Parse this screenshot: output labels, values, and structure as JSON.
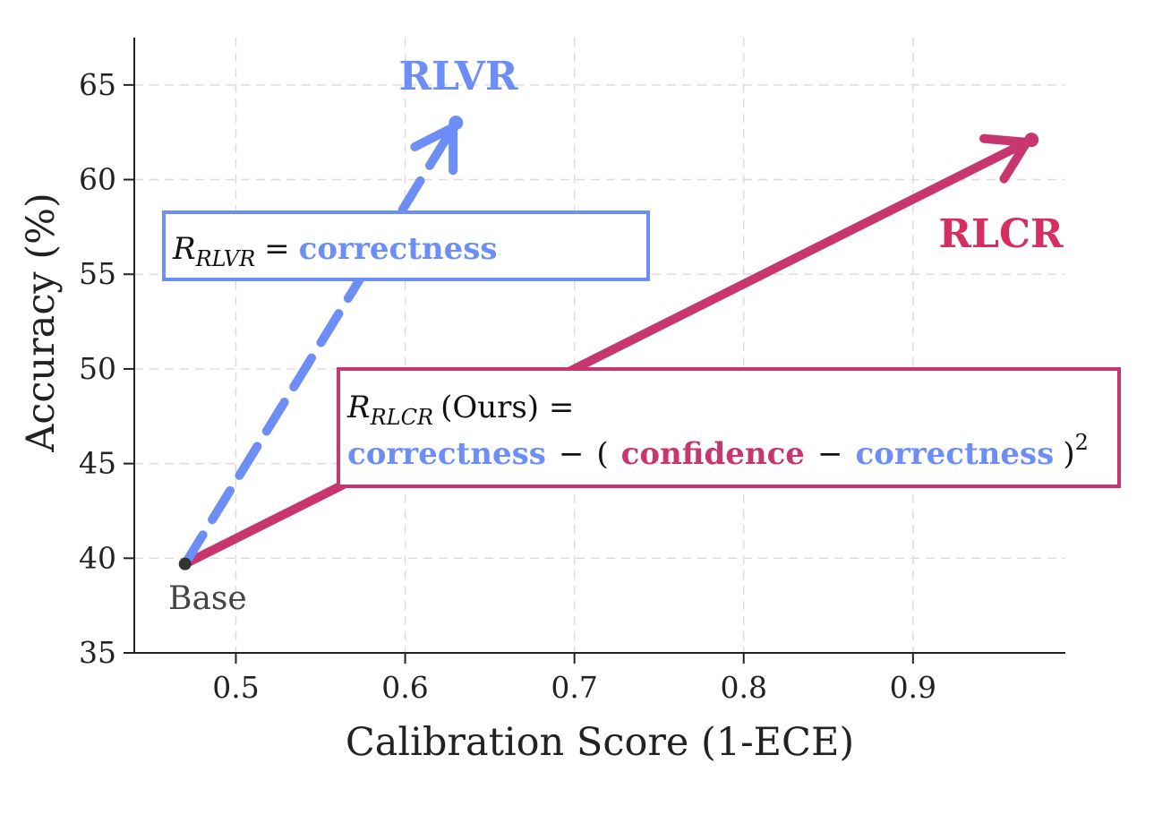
{
  "chart_data": {
    "type": "line",
    "xlabel": "Calibration Score (1-ECE)",
    "ylabel": "Accuracy (%)",
    "xlim": [
      0.44,
      0.99
    ],
    "ylim": [
      35,
      67.5
    ],
    "x_ticks": [
      "0.5",
      "0.6",
      "0.7",
      "0.8",
      "0.9"
    ],
    "y_ticks": [
      "35",
      "40",
      "45",
      "50",
      "55",
      "60",
      "65"
    ],
    "grid": true,
    "base": {
      "label": "Base",
      "x": 0.47,
      "y": 39.7
    },
    "series": [
      {
        "name": "RLVR",
        "color": "#6E8EF7",
        "style": "dashed",
        "x": [
          0.47,
          0.63
        ],
        "y": [
          39.7,
          63.0
        ]
      },
      {
        "name": "RLCR",
        "color": "#C7366F",
        "style": "solid",
        "x": [
          0.47,
          0.97
        ],
        "y": [
          39.7,
          62.1
        ]
      }
    ],
    "annotations": {
      "rlvr_box": {
        "lhs_symbol": "R",
        "lhs_sub": "RLVR",
        "equals": "=",
        "rhs": "correctness"
      },
      "rlcr_box": {
        "lhs_symbol": "R",
        "lhs_sub": "RLCR",
        "lhs_suffix": "(Ours) =",
        "term1": "correctness",
        "minus1": "−",
        "open_paren": "(",
        "term2": "confidence",
        "minus2": "−",
        "term3": "correctness",
        "close_paren": ")",
        "exponent": "2"
      }
    },
    "colors": {
      "rlvr": "#6E8EF7",
      "rlcr": "#C7366F",
      "rlcr_label": "#D62E5E",
      "rlvr_text": "#6E8EF7",
      "rlcr_text": "#C7366F"
    }
  }
}
